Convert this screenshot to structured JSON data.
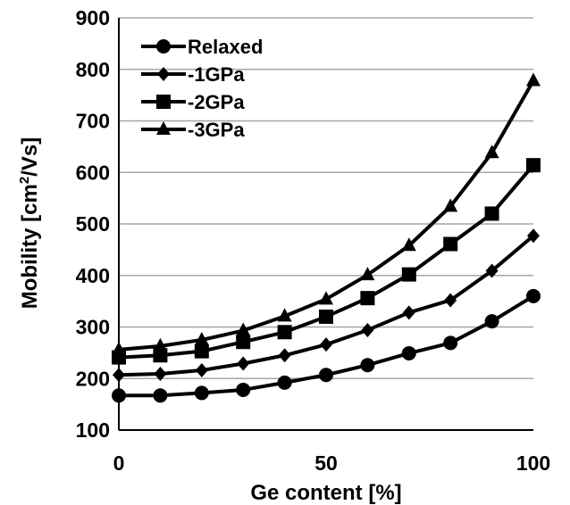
{
  "chart_data": {
    "type": "line",
    "xlabel": "Ge content [%]",
    "ylabel": "Mobility [cm²/Vs]",
    "ylabel_parts": {
      "before": "Mobility [cm",
      "sup": "2",
      "after": "/Vs]"
    },
    "xlim": [
      0,
      100
    ],
    "ylim": [
      100,
      900
    ],
    "x_ticks": [
      0,
      50,
      100
    ],
    "y_ticks": [
      100,
      200,
      300,
      400,
      500,
      600,
      700,
      800,
      900
    ],
    "grid": "horizontal",
    "legend_position": "top-left",
    "x": [
      0,
      10,
      20,
      30,
      40,
      50,
      60,
      70,
      80,
      90,
      100
    ],
    "series": [
      {
        "name": "Relaxed",
        "marker": "circle",
        "values": [
          167,
          167,
          172,
          178,
          192,
          207,
          226,
          249,
          269,
          311,
          360
        ]
      },
      {
        "name": "-1GPa",
        "marker": "diamond",
        "values": [
          207,
          209,
          216,
          229,
          245,
          266,
          294,
          328,
          352,
          409,
          477
        ]
      },
      {
        "name": "-2GPa",
        "marker": "square",
        "values": [
          241,
          245,
          253,
          271,
          290,
          320,
          356,
          402,
          461,
          520,
          614
        ]
      },
      {
        "name": "-3GPa",
        "marker": "triangle",
        "values": [
          256,
          263,
          275,
          293,
          321,
          354,
          401,
          458,
          534,
          638,
          778
        ]
      }
    ]
  }
}
